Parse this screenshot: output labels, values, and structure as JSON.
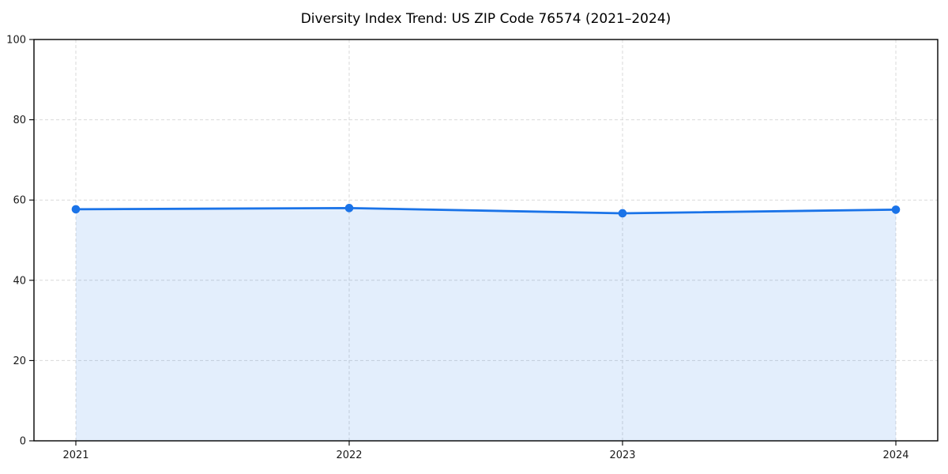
{
  "chart_data": {
    "type": "area",
    "title": "Diversity Index Trend: US ZIP Code 76574 (2021–2024)",
    "categories": [
      "2021",
      "2022",
      "2023",
      "2024"
    ],
    "series": [
      {
        "name": "Diversity Index",
        "values": [
          57.7,
          58.0,
          56.7,
          57.6
        ]
      }
    ],
    "xlabel": "",
    "ylabel": "",
    "ylim": [
      0,
      100
    ],
    "yticks": [
      0,
      20,
      40,
      60,
      80,
      100
    ],
    "grid": true,
    "grid_style": "dashed",
    "legend": false,
    "colors": {
      "line": "#1a73e8",
      "marker": "#1a73e8",
      "fill": "#1a73e8",
      "fill_opacity": 0.12,
      "grid": "#d9d9d9",
      "axis": "#000000",
      "tick_label": "#1a1a1a",
      "background": "#ffffff"
    }
  }
}
